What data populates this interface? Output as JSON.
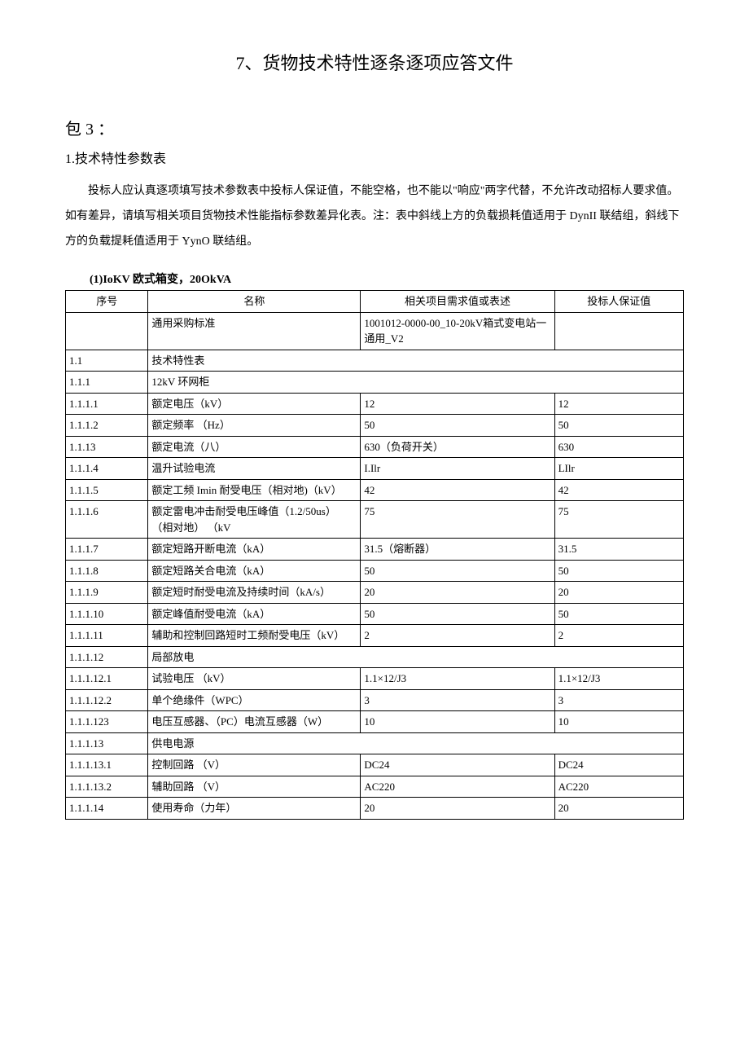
{
  "doc_title": "7、货物技术特性逐条逐项应答文件",
  "section_label": "包 3 ：",
  "subsection_label": "1.技术特性参数表",
  "paragraph": "投标人应认真逐项填写技术参数表中投标人保证值，不能空格，也不能以\"响应\"两字代替，不允许改动招标人要求值。如有差异，请填写相关项目货物技术性能指标参数差异化表。注：表中斜线上方的负载损耗值适用于 DynII 联结组，斜线下方的负载提耗值适用于 YynO 联结组。",
  "table_caption": "(1)IoKV 欧式箱变，20OkVA",
  "headers": [
    "序号",
    "名称",
    "相关项目需求值或表述",
    "投标人保证值"
  ],
  "rows": [
    {
      "seq": "",
      "name": "通用采购标准",
      "req": "1001012-0000-00_10-20kV箱式变电站一通用_V2",
      "bid": "",
      "type": "normal"
    },
    {
      "seq": "1.1",
      "name": "技术特性表",
      "type": "span"
    },
    {
      "seq": "1.1.1",
      "name": "12kV 环网柜",
      "type": "span"
    },
    {
      "seq": "1.1.1.1",
      "name": "额定电压（kV）",
      "req": "12",
      "bid": "12",
      "type": "normal"
    },
    {
      "seq": "1.1.1.2",
      "name": "额定频率 （Hz）",
      "req": "50",
      "bid": "50",
      "type": "normal"
    },
    {
      "seq": "1.1.13",
      "name": "额定电流（八）",
      "req": "630（负荷开关）",
      "bid": "630",
      "type": "normal"
    },
    {
      "seq": "1.1.1.4",
      "name": "温升试验电流",
      "req": "I.Ilr",
      "bid": "LIlr",
      "type": "normal"
    },
    {
      "seq": "1.1.1.5",
      "name": "额定工频 Imin 耐受电压（相对地)（kV）",
      "req": "42",
      "bid": "42",
      "type": "normal"
    },
    {
      "seq": "1.1.1.6",
      "name": "额定雷电冲击耐受电压峰值（1.2/50us） （相对地） （kV",
      "req": "75",
      "bid": "75",
      "type": "normal"
    },
    {
      "seq": "1.1.1.7",
      "name": "额定短路开断电流（kA）",
      "req": "31.5（熔断器）",
      "bid": "31.5",
      "type": "normal"
    },
    {
      "seq": "1.1.1.8",
      "name": "额定短路关合电流（kA）",
      "req": "50",
      "bid": "50",
      "type": "normal"
    },
    {
      "seq": "1.1.1.9",
      "name": "额定短时耐受电流及持续时间（kA/s）",
      "req": "20",
      "bid": "20",
      "type": "normal"
    },
    {
      "seq": "1.1.1.10",
      "name": "额定峰值耐受电流（kA）",
      "req": "50",
      "bid": "50",
      "type": "normal"
    },
    {
      "seq": "1.1.1.11",
      "name": "辅助和控制回路短时工频耐受电压（kV）",
      "req": "2",
      "bid": "2",
      "type": "normal"
    },
    {
      "seq": "1.1.1.12",
      "name": "局部放电",
      "type": "span"
    },
    {
      "seq": "1.1.1.12.1",
      "name": "试验电压 （kV）",
      "req": "1.1×12/J3",
      "bid": "1.1×12/J3",
      "type": "normal"
    },
    {
      "seq": "1.1.1.12.2",
      "name": "单个绝缘件（WPC）",
      "req": "3",
      "bid": "3",
      "type": "normal"
    },
    {
      "seq": "1.1.1.123",
      "name": "电压互感器、（PC）电流互感器（W）",
      "req": "10",
      "bid": "10",
      "type": "normal"
    },
    {
      "seq": "1.1.1.13",
      "name": "供电电源",
      "type": "span"
    },
    {
      "seq": "1.1.1.13.1",
      "name": "控制回路 （V）",
      "req": "DC24",
      "bid": "DC24",
      "type": "normal"
    },
    {
      "seq": "1.1.1.13.2",
      "name": "辅助回路 （V）",
      "req": "AC220",
      "bid": "AC220",
      "type": "normal"
    },
    {
      "seq": "1.1.1.14",
      "name": "使用寿命（力年）",
      "req": "20",
      "bid": "20",
      "type": "normal"
    }
  ]
}
